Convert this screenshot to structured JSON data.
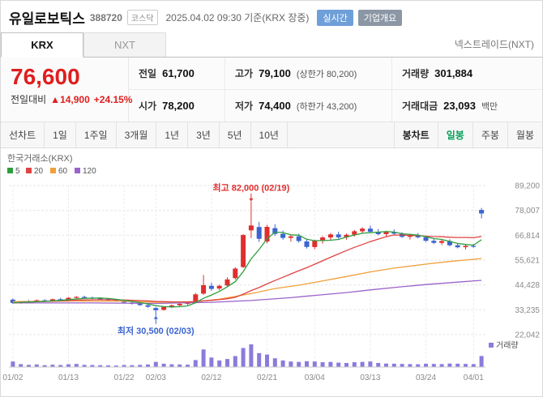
{
  "header": {
    "title": "유일로보틱스",
    "code": "388720",
    "market_badge": "코스닥",
    "datetime": "2025.04.02 09:30 기준(KRX 장중)",
    "realtime_badge": "실시간",
    "overview_badge": "기업개요"
  },
  "exchange_tabs": {
    "krx": "KRX",
    "nxt": "NXT",
    "right_link": "넥스트레이드(NXT)"
  },
  "price_panel": {
    "current_price": "76,600",
    "change_label": "전일대비",
    "change_arrow": "▲",
    "change_value": "14,900",
    "change_percent": "+24.15%",
    "stats": {
      "prev_label": "전일",
      "prev_value": "61,700",
      "high_label": "고가",
      "high_value": "79,100",
      "high_limit": "(상한가 80,200)",
      "volume_label": "거래량",
      "volume_value": "301,884",
      "open_label": "시가",
      "open_value": "78,200",
      "low_label": "저가",
      "low_value": "74,400",
      "low_limit": "(하한가 43,200)",
      "amount_label": "거래대금",
      "amount_value": "23,093",
      "amount_unit": "백만"
    }
  },
  "period_tabs": {
    "left": [
      "선차트",
      "1일",
      "1주일",
      "3개월",
      "1년",
      "3년",
      "5년",
      "10년"
    ],
    "right_label": "봉차트",
    "right": [
      "일봉",
      "주봉",
      "월봉"
    ],
    "active_right": "일봉"
  },
  "chart_data": {
    "type": "candlestick",
    "exchange_label": "한국거래소(KRX)",
    "volume_label": "거래량",
    "up_color": "#e02e2e",
    "down_color": "#3b64d2",
    "volume_color": "#8a7bdc",
    "y_ticks": [
      89200,
      78007,
      66814,
      55621,
      44428,
      33235,
      22042
    ],
    "x_ticks": [
      {
        "label": "01/02",
        "index": 0
      },
      {
        "label": "01/13",
        "index": 7
      },
      {
        "label": "01/22",
        "index": 14
      },
      {
        "label": "02/03",
        "index": 18
      },
      {
        "label": "02/12",
        "index": 25
      },
      {
        "label": "02/21",
        "index": 32
      },
      {
        "label": "03/04",
        "index": 38
      },
      {
        "label": "03/13",
        "index": 45
      },
      {
        "label": "03/24",
        "index": 52
      },
      {
        "label": "04/01",
        "index": 58
      }
    ],
    "ma_legend": [
      {
        "period": "5",
        "color": "#2e9e3e"
      },
      {
        "period": "20",
        "color": "#e04343"
      },
      {
        "period": "60",
        "color": "#f0a03a"
      },
      {
        "period": "120",
        "color": "#9a63c9"
      }
    ],
    "annotations": {
      "high": {
        "text": "최고 82,000 (02/19)",
        "index": 30,
        "price": 82000,
        "color": "#e02e2e"
      },
      "low": {
        "text": "최저 30,500 (02/03)",
        "index": 18,
        "price": 30500,
        "color": "#3b64d2"
      }
    },
    "candles": [
      [
        "01/02",
        37800,
        38400,
        35900,
        36300,
        150
      ],
      [
        "01/03",
        36400,
        37200,
        36000,
        37000,
        80
      ],
      [
        "01/06",
        37000,
        37600,
        36500,
        36800,
        60
      ],
      [
        "01/07",
        36900,
        37800,
        36600,
        37500,
        70
      ],
      [
        "01/08",
        37500,
        38000,
        37000,
        37200,
        50
      ],
      [
        "01/09",
        37300,
        38200,
        37100,
        38000,
        65
      ],
      [
        "01/10",
        38000,
        38600,
        37400,
        37700,
        55
      ],
      [
        "01/13",
        37700,
        38900,
        37500,
        38600,
        75
      ],
      [
        "01/14",
        38600,
        39400,
        38200,
        39000,
        85
      ],
      [
        "01/15",
        39000,
        39600,
        38400,
        38700,
        60
      ],
      [
        "01/16",
        38700,
        39200,
        38000,
        38300,
        55
      ],
      [
        "01/17",
        38300,
        38800,
        37800,
        38100,
        50
      ],
      [
        "01/20",
        38100,
        38500,
        37200,
        37500,
        45
      ],
      [
        "01/21",
        37500,
        37900,
        36800,
        37100,
        40
      ],
      [
        "01/22",
        37100,
        37600,
        36200,
        36500,
        55
      ],
      [
        "01/23",
        36500,
        37000,
        35600,
        35900,
        50
      ],
      [
        "01/24",
        35900,
        36400,
        35000,
        35300,
        60
      ],
      [
        "01/31",
        35300,
        35800,
        34200,
        34600,
        70
      ],
      [
        "02/03",
        34000,
        34500,
        30500,
        33000,
        140
      ],
      [
        "02/04",
        33200,
        34800,
        32800,
        34500,
        90
      ],
      [
        "02/05",
        34500,
        35600,
        34000,
        35200,
        75
      ],
      [
        "02/06",
        35200,
        36200,
        34800,
        35900,
        70
      ],
      [
        "02/07",
        35900,
        36800,
        35400,
        36400,
        65
      ],
      [
        "02/10",
        36500,
        40800,
        36200,
        40200,
        190
      ],
      [
        "02/11",
        40500,
        48900,
        40000,
        44300,
        480
      ],
      [
        "02/12",
        44000,
        45500,
        41800,
        42600,
        260
      ],
      [
        "02/13",
        42800,
        44600,
        42000,
        44000,
        180
      ],
      [
        "02/14",
        44200,
        47800,
        43600,
        46900,
        220
      ],
      [
        "02/17",
        47500,
        52400,
        46800,
        51800,
        300
      ],
      [
        "02/18",
        52500,
        67300,
        52000,
        66900,
        520
      ],
      [
        "02/19",
        69000,
        82000,
        65500,
        71200,
        620
      ],
      [
        "02/20",
        70500,
        72800,
        63800,
        65200,
        380
      ],
      [
        "02/21",
        64000,
        71500,
        63200,
        70600,
        340
      ],
      [
        "02/24",
        70000,
        71800,
        66500,
        67400,
        240
      ],
      [
        "02/25",
        67400,
        68900,
        64800,
        65600,
        180
      ],
      [
        "02/26",
        65600,
        67200,
        63900,
        66300,
        150
      ],
      [
        "02/27",
        66300,
        67500,
        63500,
        64200,
        140
      ],
      [
        "02/28",
        64000,
        65000,
        60800,
        61500,
        160
      ],
      [
        "03/04",
        61500,
        64800,
        60500,
        64200,
        150
      ],
      [
        "03/05",
        64200,
        66400,
        63000,
        65800,
        130
      ],
      [
        "03/06",
        65800,
        67800,
        64600,
        67200,
        140
      ],
      [
        "03/07",
        67200,
        68400,
        65200,
        65900,
        120
      ],
      [
        "03/10",
        65900,
        67600,
        64800,
        67000,
        110
      ],
      [
        "03/11",
        67000,
        69200,
        66200,
        68600,
        130
      ],
      [
        "03/12",
        68600,
        70400,
        67500,
        69800,
        140
      ],
      [
        "03/13",
        69800,
        71200,
        67800,
        68400,
        150
      ],
      [
        "03/14",
        68400,
        69600,
        66800,
        67300,
        110
      ],
      [
        "03/17",
        67300,
        68800,
        66400,
        68200,
        95
      ],
      [
        "03/18",
        68200,
        69400,
        66900,
        67500,
        90
      ],
      [
        "03/19",
        67500,
        68200,
        65600,
        66100,
        85
      ],
      [
        "03/20",
        66100,
        67400,
        64900,
        66800,
        80
      ],
      [
        "03/21",
        66800,
        67800,
        65400,
        65900,
        75
      ],
      [
        "03/24",
        65900,
        66600,
        63800,
        64300,
        90
      ],
      [
        "03/25",
        64300,
        65400,
        62800,
        63400,
        85
      ],
      [
        "03/26",
        63400,
        64800,
        62400,
        64200,
        80
      ],
      [
        "03/27",
        64200,
        65000,
        61800,
        62300,
        95
      ],
      [
        "03/28",
        62300,
        63400,
        60900,
        61400,
        90
      ],
      [
        "03/31",
        61400,
        62800,
        60400,
        62000,
        85
      ],
      [
        "04/01",
        62000,
        62900,
        61200,
        61700,
        80
      ],
      [
        "04/02",
        78200,
        79100,
        74400,
        76600,
        302
      ]
    ],
    "ma_slow": {
      "60": [
        [
          0,
          36900
        ],
        [
          8,
          37200
        ],
        [
          14,
          37100
        ],
        [
          18,
          36600
        ],
        [
          23,
          36900
        ],
        [
          26,
          38000
        ],
        [
          30,
          40500
        ],
        [
          33,
          42800
        ],
        [
          36,
          44300
        ],
        [
          38,
          45600
        ],
        [
          42,
          48200
        ],
        [
          45,
          50300
        ],
        [
          48,
          52000
        ],
        [
          52,
          53800
        ],
        [
          55,
          55000
        ],
        [
          59,
          56300
        ]
      ],
      "120": [
        [
          0,
          36300
        ],
        [
          10,
          36300
        ],
        [
          18,
          36100
        ],
        [
          25,
          36600
        ],
        [
          30,
          37400
        ],
        [
          35,
          38700
        ],
        [
          38,
          39700
        ],
        [
          42,
          41000
        ],
        [
          45,
          42200
        ],
        [
          49,
          43600
        ],
        [
          52,
          44600
        ],
        [
          56,
          45700
        ],
        [
          59,
          46500
        ]
      ]
    }
  }
}
